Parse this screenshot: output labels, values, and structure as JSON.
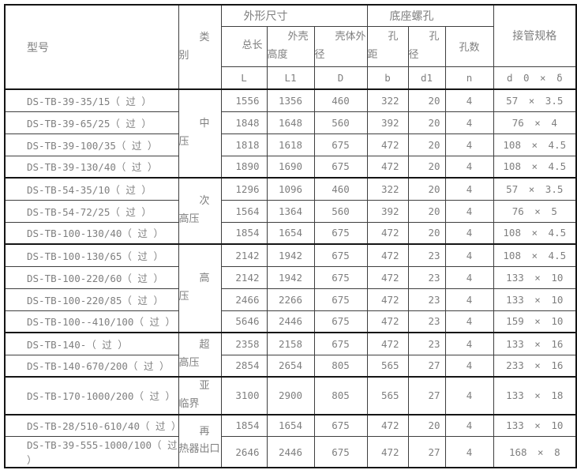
{
  "table": {
    "headers": {
      "model": "型号",
      "category": "类\n别",
      "dims_group": "外形尺寸",
      "base_group": "底座螺孔",
      "pipe_group": "接管规格",
      "total_len": "总长",
      "shell_height": "外壳\n高度",
      "shell_od": "壳体外\n径",
      "hole_pitch": "孔\n距",
      "hole_dia": "孔\n径",
      "hole_count": "孔数",
      "sym_total": "L",
      "sym_height": "L1",
      "sym_od": "D",
      "sym_pitch": "b",
      "sym_dia": "d1",
      "sym_count": "n",
      "sym_pipe": "d 0 × δ"
    },
    "groups": [
      {
        "category": "中\n压",
        "rows": [
          {
            "model": "DS-TB-39-35/15（ 过 ）",
            "L": "1556",
            "L1": "1356",
            "D": "460",
            "b": "322",
            "d1": "20",
            "n": "4",
            "spec": "57 × 3.5"
          },
          {
            "model": "DS-TB-39-65/25（ 过 ）",
            "L": "1848",
            "L1": "1648",
            "D": "560",
            "b": "392",
            "d1": "20",
            "n": "4",
            "spec": "76 × 4"
          },
          {
            "model": "DS-TB-39-100/35（ 过 ）",
            "L": "1818",
            "L1": "1618",
            "D": "675",
            "b": "472",
            "d1": "20",
            "n": "4",
            "spec": "108 × 4.5"
          },
          {
            "model": "DS-TB-39-130/40（ 过 ）",
            "L": "1890",
            "L1": "1690",
            "D": "675",
            "b": "472",
            "d1": "20",
            "n": "4",
            "spec": "108 × 4.5"
          }
        ]
      },
      {
        "category": "次\n高压",
        "rows": [
          {
            "model": "DS-TB-54-35/10（ 过 ）",
            "L": "1296",
            "L1": "1096",
            "D": "460",
            "b": "322",
            "d1": "20",
            "n": "4",
            "spec": "57 × 3.5"
          },
          {
            "model": "DS-TB-54-72/25（ 过 ）",
            "L": "1564",
            "L1": "1364",
            "D": "560",
            "b": "392",
            "d1": "20",
            "n": "4",
            "spec": "76 × 5"
          },
          {
            "model": "DS-TB-100-130/40（ 过 ）",
            "L": "1854",
            "L1": "1654",
            "D": "675",
            "b": "472",
            "d1": "20",
            "n": "4",
            "spec": "108 × 4.5"
          }
        ]
      },
      {
        "category": "高\n压",
        "rows": [
          {
            "model": "DS-TB-100-130/65（ 过 ）",
            "L": "2142",
            "L1": "1942",
            "D": "675",
            "b": "472",
            "d1": "23",
            "n": "4",
            "spec": "108 × 4.5"
          },
          {
            "model": "DS-TB-100-220/60（ 过 ）",
            "L": "2142",
            "L1": "1942",
            "D": "675",
            "b": "472",
            "d1": "23",
            "n": "4",
            "spec": "133 × 10"
          },
          {
            "model": "DS-TB-100-220/85（ 过 ）",
            "L": "2466",
            "L1": "2266",
            "D": "675",
            "b": "472",
            "d1": "23",
            "n": "4",
            "spec": "133 × 10"
          },
          {
            "model": "DS-TB-100--410/100（ 过 ）",
            "L": "5646",
            "L1": "2446",
            "D": "675",
            "b": "472",
            "d1": "23",
            "n": "4",
            "spec": "159 × 10"
          }
        ]
      },
      {
        "category": "超\n高压",
        "rows": [
          {
            "model": "DS-TB-140-（ 过 ）",
            "L": "2358",
            "L1": "2158",
            "D": "675",
            "b": "472",
            "d1": "23",
            "n": "4",
            "spec": "133 × 16"
          },
          {
            "model": "DS-TB-140-670/200（ 过 ）",
            "L": "2854",
            "L1": "2654",
            "D": "805",
            "b": "565",
            "d1": "27",
            "n": "4",
            "spec": "233 × 16"
          }
        ]
      },
      {
        "category": "亚\n临界",
        "tall": true,
        "rows": [
          {
            "model": "DS-TB-170-1000/200（ 过 ）",
            "L": "3100",
            "L1": "2900",
            "D": "805",
            "b": "565",
            "d1": "27",
            "n": "4",
            "spec": "133 × 18"
          }
        ]
      },
      {
        "category": "再\n热器出口",
        "rows": [
          {
            "model": "DS-TB-28/510-610/40（ 过 ）",
            "L": "1854",
            "L1": "1654",
            "D": "675",
            "b": "472",
            "d1": "20",
            "n": "4",
            "spec": "133 × 10"
          },
          {
            "model": "DS-TB-39-555-1000/100（ 过 ）",
            "L": "2646",
            "L1": "2446",
            "D": "675",
            "b": "472",
            "d1": "27",
            "n": "4",
            "spec": "168 × 8"
          }
        ]
      }
    ]
  }
}
